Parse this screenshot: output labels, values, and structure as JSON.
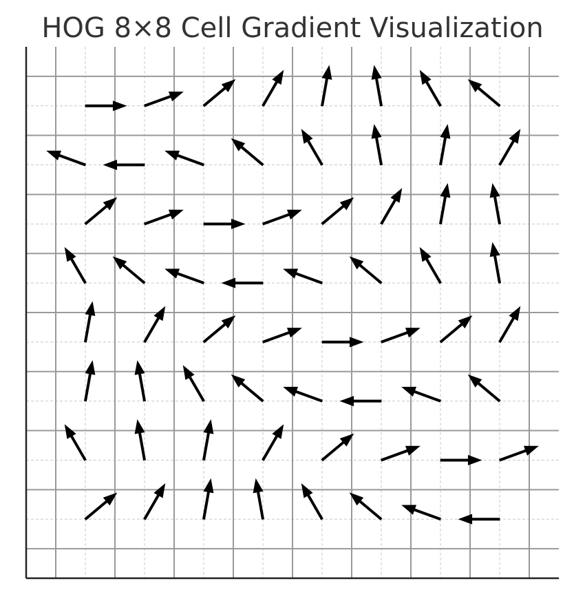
{
  "chart_data": {
    "type": "quiver",
    "title": "HOG 8×8 Cell Gradient Visualization",
    "xlabel": "",
    "ylabel": "",
    "xlim": [
      0,
      9
    ],
    "ylim": [
      0,
      9
    ],
    "grid": true,
    "major_gridlines": [
      0.5,
      1.5,
      2.5,
      3.5,
      4.5,
      5.5,
      6.5,
      7.5,
      8.5
    ],
    "minor_gridlines": [
      1,
      2,
      3,
      4,
      5,
      6,
      7,
      8
    ],
    "arrow_length": 0.69,
    "cell_angles_deg": [
      [
        0,
        20,
        40,
        60,
        80,
        100,
        120,
        140
      ],
      [
        160,
        180,
        160,
        140,
        120,
        100,
        80,
        60
      ],
      [
        40,
        20,
        0,
        20,
        40,
        60,
        80,
        100
      ],
      [
        120,
        140,
        160,
        180,
        160,
        140,
        120,
        100
      ],
      [
        80,
        60,
        40,
        20,
        0,
        20,
        40,
        60
      ],
      [
        80,
        100,
        120,
        140,
        160,
        180,
        160,
        140
      ],
      [
        120,
        100,
        80,
        60,
        40,
        20,
        0,
        20
      ],
      [
        40,
        60,
        80,
        100,
        120,
        140,
        160,
        180
      ]
    ],
    "colors": {
      "arrow": "#000000",
      "major_grid": "#999999",
      "minor_grid": "#c8c8c8",
      "axis": "#222222",
      "title": "#333333"
    }
  }
}
